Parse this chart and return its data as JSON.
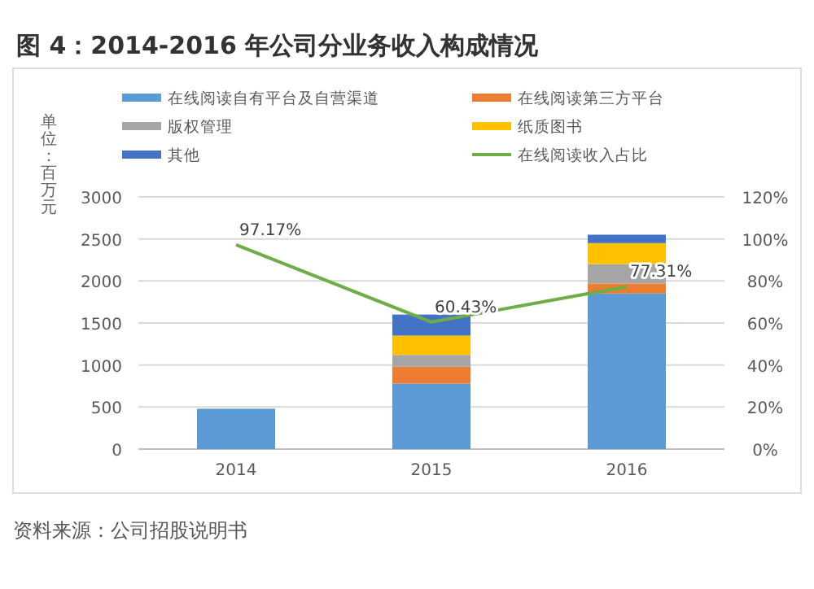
{
  "chart_data": {
    "type": "bar",
    "title": "图 4：2014-2016 年公司分业务收入构成情况",
    "ylabel": "单位：百万元",
    "categories": [
      "2014",
      "2015",
      "2016"
    ],
    "stacked": true,
    "ylim": [
      0,
      3000
    ],
    "yticks": [
      0,
      500,
      1000,
      1500,
      2000,
      2500,
      3000
    ],
    "y2lim": [
      0,
      1.2
    ],
    "y2ticks": [
      {
        "value": 0,
        "label": "0%"
      },
      {
        "value": 0.2,
        "label": "20%"
      },
      {
        "value": 0.4,
        "label": "40%"
      },
      {
        "value": 0.6,
        "label": "60%"
      },
      {
        "value": 0.8,
        "label": "80%"
      },
      {
        "value": 1,
        "label": "100%"
      },
      {
        "value": 1.2,
        "label": "120%"
      }
    ],
    "grid": "y",
    "legend": "top",
    "series": [
      {
        "name": "在线阅读自有平台及自营渠道",
        "color": "#5b9bd5",
        "values": [
          480,
          780,
          1850
        ]
      },
      {
        "name": "在线阅读第三方平台",
        "color": "#ed7d31",
        "values": [
          0,
          200,
          120
        ]
      },
      {
        "name": "版权管理",
        "color": "#a5a5a5",
        "values": [
          0,
          140,
          230
        ]
      },
      {
        "name": "纸质图书",
        "color": "#ffc000",
        "values": [
          0,
          230,
          250
        ]
      },
      {
        "name": "其他",
        "color": "#4472c4",
        "values": [
          0,
          250,
          100
        ]
      },
      {
        "name": "在线阅读收入占比",
        "type": "line",
        "axis": "y2",
        "color": "#70ad47",
        "values": [
          0.9717,
          0.6043,
          0.7731
        ],
        "value_labels": [
          "97.17%",
          "60.43%",
          "77.31%"
        ]
      }
    ],
    "annotations": [
      "资料来源：公司招股说明书"
    ]
  }
}
